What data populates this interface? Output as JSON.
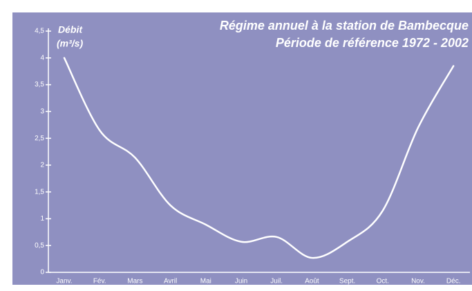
{
  "chart_data": {
    "type": "line",
    "title": [
      "Régime annuel à la station de Bambecque",
      "Période de référence 1972 - 2002"
    ],
    "y_label": [
      "Débit",
      "(m³/s)"
    ],
    "categories": [
      "Janv.",
      "Fév.",
      "Mars",
      "Avril",
      "Mai",
      "Juin",
      "Juil.",
      "Août",
      "Sept.",
      "Oct.",
      "Nov.",
      "Déc."
    ],
    "series": [
      {
        "color": "#ffffff",
        "values": [
          4.0,
          2.65,
          2.14,
          1.25,
          0.89,
          0.57,
          0.66,
          0.27,
          0.57,
          1.15,
          2.7,
          3.85
        ]
      }
    ],
    "ylim": [
      0,
      4.5
    ],
    "yticks": [
      0,
      {
        "value": 0.5,
        "label": "0,5"
      },
      1,
      {
        "value": 1.5,
        "label": "1,5"
      },
      2,
      {
        "value": 2.5,
        "label": "2,5"
      },
      3,
      {
        "value": 3.5,
        "label": "3,5"
      },
      4,
      {
        "value": 4.5,
        "label": "4,5"
      }
    ],
    "background": "#8f90c1"
  }
}
